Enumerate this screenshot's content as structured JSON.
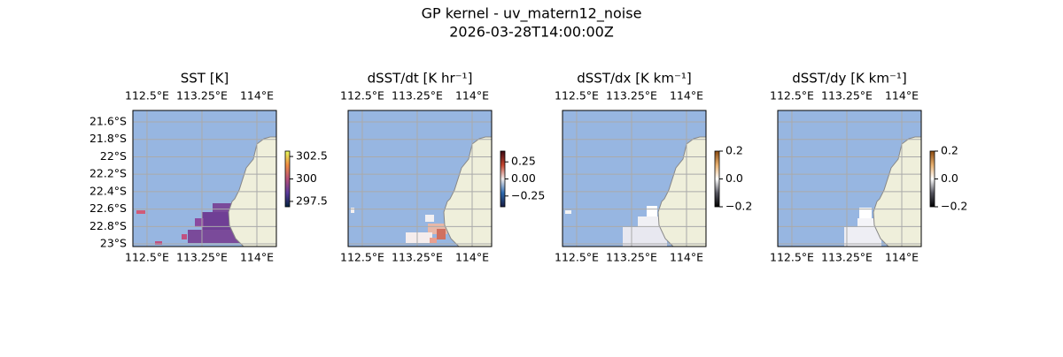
{
  "title": "GP kernel - uv_matern12_noise",
  "subtitle": "2026-03-28T14:00:00Z",
  "map": {
    "xlim": [
      112.307,
      114.266
    ],
    "ylim": [
      -21.468,
      -23.03
    ],
    "xticks": [
      {
        "value": 112.5,
        "label": "112.5°E"
      },
      {
        "value": 113.25,
        "label": "113.25°E"
      },
      {
        "value": 114,
        "label": "114°E"
      }
    ],
    "yticks": [
      {
        "value": -21.6,
        "label": "21.6°S"
      },
      {
        "value": -21.8,
        "label": "21.8°S"
      },
      {
        "value": -22,
        "label": "22°S"
      },
      {
        "value": -22.2,
        "label": "22.2°S"
      },
      {
        "value": -22.4,
        "label": "22.4°S"
      },
      {
        "value": -22.6,
        "label": "22.6°S"
      },
      {
        "value": -22.8,
        "label": "22.8°S"
      },
      {
        "value": -23,
        "label": "23°S"
      }
    ],
    "grid": true,
    "ocean_color": "#97b6e1",
    "land_color": "#efefdb"
  },
  "panels": [
    {
      "title": "SST [K]",
      "colormap": [
        "#04233f",
        "#5b3a9c",
        "#b7507a",
        "#f08c42",
        "#e8fa5b"
      ],
      "clim": [
        296.9,
        303.1
      ],
      "cticks": [
        302.5,
        300,
        297.5
      ]
    },
    {
      "title": "dSST/dt [K hr⁻¹]",
      "colormap": [
        "#181c43",
        "#2d6ab0",
        "#f1ecec",
        "#c4442e",
        "#3c0912"
      ],
      "clim": [
        -0.408,
        0.408
      ],
      "cticks": [
        0.25,
        {
          "value": 0,
          "label": "0.00"
        },
        {
          "value": -0.25,
          "label": "−0.25"
        }
      ]
    },
    {
      "title": "dSST/dx [K km⁻¹]",
      "colormap": [
        "#000000",
        "#555560",
        "#ffffff",
        "#e8b070",
        "#8a4a10"
      ],
      "clim": [
        -0.2,
        0.2
      ],
      "cticks": [
        0.2,
        {
          "value": 0,
          "label": "0.0"
        },
        {
          "value": -0.2,
          "label": "−0.2"
        }
      ]
    },
    {
      "title": "dSST/dy [K km⁻¹]",
      "colormap": [
        "#000000",
        "#555560",
        "#ffffff",
        "#e8b070",
        "#8a4a10"
      ],
      "clim": [
        -0.2,
        0.2
      ],
      "cticks": [
        0.2,
        {
          "value": 0,
          "label": "0.0"
        },
        {
          "value": -0.2,
          "label": "−0.2"
        }
      ]
    }
  ]
}
